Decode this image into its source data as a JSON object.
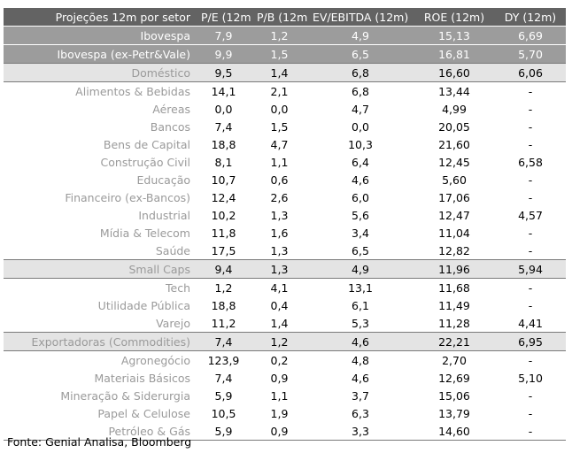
{
  "headers": [
    "Projeções 12m por setor",
    "P/E (12m)",
    "P/B (12m)",
    "EV/EBITDA (12m)",
    "ROE (12m)",
    "DY (12m)"
  ],
  "rows": [
    {
      "style": "dark",
      "cells": [
        "Ibovespa",
        "7,9",
        "1,2",
        "4,9",
        "15,13",
        "6,69"
      ]
    },
    {
      "style": "dark",
      "cells": [
        "Ibovespa (ex-Petr&Vale)",
        "9,9",
        "1,5",
        "6,5",
        "16,81",
        "5,70"
      ]
    },
    {
      "style": "light",
      "cells": [
        "Doméstico",
        "9,5",
        "1,4",
        "6,8",
        "16,60",
        "6,06"
      ]
    },
    {
      "style": "normal",
      "cells": [
        "Alimentos & Bebidas",
        "14,1",
        "2,1",
        "6,8",
        "13,44",
        "-"
      ]
    },
    {
      "style": "normal",
      "cells": [
        "Aéreas",
        "0,0",
        "0,0",
        "4,7",
        "4,99",
        "-"
      ]
    },
    {
      "style": "normal",
      "cells": [
        "Bancos",
        "7,4",
        "1,5",
        "0,0",
        "20,05",
        "-"
      ]
    },
    {
      "style": "normal",
      "cells": [
        "Bens de Capital",
        "18,8",
        "4,7",
        "10,3",
        "21,60",
        "-"
      ]
    },
    {
      "style": "normal",
      "cells": [
        "Construção Civil",
        "8,1",
        "1,1",
        "6,4",
        "12,45",
        "6,58"
      ]
    },
    {
      "style": "normal",
      "cells": [
        "Educação",
        "10,7",
        "0,6",
        "4,6",
        "5,60",
        "-"
      ]
    },
    {
      "style": "normal",
      "cells": [
        "Financeiro (ex-Bancos)",
        "12,4",
        "2,6",
        "6,0",
        "17,06",
        "-"
      ]
    },
    {
      "style": "normal",
      "cells": [
        "Industrial",
        "10,2",
        "1,3",
        "5,6",
        "12,47",
        "4,57"
      ]
    },
    {
      "style": "normal",
      "cells": [
        "Mídia & Telecom",
        "11,8",
        "1,6",
        "3,4",
        "11,04",
        "-"
      ]
    },
    {
      "style": "normal",
      "cells": [
        "Saúde",
        "17,5",
        "1,3",
        "6,5",
        "12,82",
        "-"
      ]
    },
    {
      "style": "light",
      "cells": [
        "Small Caps",
        "9,4",
        "1,3",
        "4,9",
        "11,96",
        "5,94"
      ]
    },
    {
      "style": "normal",
      "cells": [
        "Tech",
        "1,2",
        "4,1",
        "13,1",
        "11,68",
        "-"
      ]
    },
    {
      "style": "normal",
      "cells": [
        "Utilidade Pública",
        "18,8",
        "0,4",
        "6,1",
        "11,49",
        "-"
      ]
    },
    {
      "style": "normal",
      "cells": [
        "Varejo",
        "11,2",
        "1,4",
        "5,3",
        "11,28",
        "4,41"
      ]
    },
    {
      "style": "light",
      "cells": [
        "Exportadoras (Commodities)",
        "7,4",
        "1,2",
        "4,6",
        "22,21",
        "6,95"
      ]
    },
    {
      "style": "normal",
      "cells": [
        "Agronegócio",
        "123,9",
        "0,2",
        "4,8",
        "2,70",
        "-"
      ]
    },
    {
      "style": "normal",
      "cells": [
        "Materiais Básicos",
        "7,4",
        "0,9",
        "4,6",
        "12,69",
        "5,10"
      ]
    },
    {
      "style": "normal",
      "cells": [
        "Mineração & Siderurgia",
        "5,9",
        "1,1",
        "3,7",
        "15,06",
        "-"
      ]
    },
    {
      "style": "normal",
      "cells": [
        "Papel & Celulose",
        "10,5",
        "1,9",
        "6,3",
        "13,79",
        "-"
      ]
    },
    {
      "style": "bottom",
      "cells": [
        "Petróleo & Gás",
        "5,9",
        "0,9",
        "3,3",
        "14,60",
        "-"
      ]
    }
  ],
  "source": "Fonte: Genial Analisa, Bloomberg"
}
